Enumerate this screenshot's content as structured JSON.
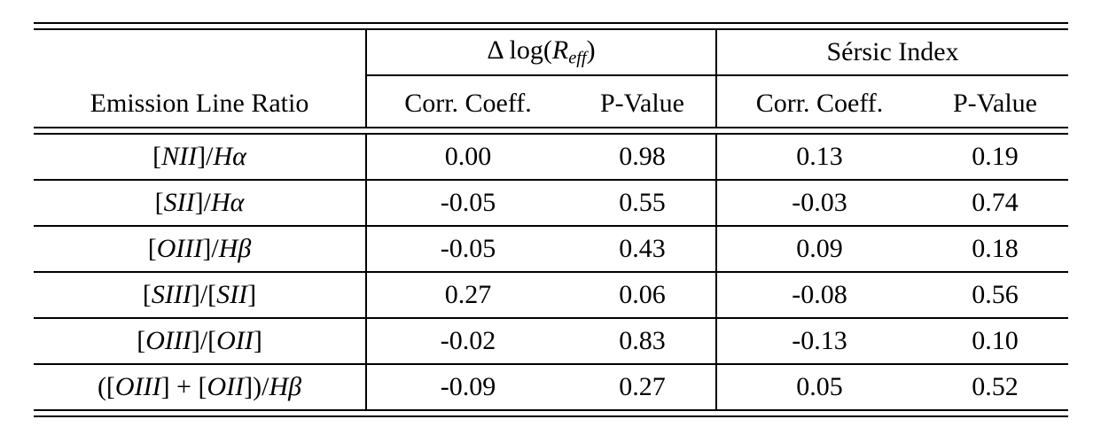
{
  "colors": {
    "background": "#ffffff",
    "text": "#000000",
    "rule": "#000000"
  },
  "table": {
    "row_label_header": "Emission Line Ratio",
    "groups": [
      {
        "title_segments": [
          {
            "t": "Δ log(",
            "it": false
          },
          {
            "t": "R",
            "it": true
          },
          {
            "t": "eff",
            "it": true,
            "sub": true
          },
          {
            "t": ")",
            "it": false
          }
        ],
        "columns": [
          "Corr. Coeff.",
          "P-Value"
        ]
      },
      {
        "title_segments": [
          {
            "t": "Sérsic Index",
            "it": false
          }
        ],
        "columns": [
          "Corr. Coeff.",
          "P-Value"
        ]
      }
    ],
    "rows": [
      {
        "label_segments": [
          {
            "t": "[",
            "it": false
          },
          {
            "t": "NII",
            "it": true
          },
          {
            "t": "]/",
            "it": false
          },
          {
            "t": "Hα",
            "it": true
          }
        ],
        "values": [
          "0.00",
          "0.98",
          "0.13",
          "0.19"
        ]
      },
      {
        "label_segments": [
          {
            "t": "[",
            "it": false
          },
          {
            "t": "SII",
            "it": true
          },
          {
            "t": "]/",
            "it": false
          },
          {
            "t": "Hα",
            "it": true
          }
        ],
        "values": [
          "-0.05",
          "0.55",
          "-0.03",
          "0.74"
        ]
      },
      {
        "label_segments": [
          {
            "t": "[",
            "it": false
          },
          {
            "t": "OIII",
            "it": true
          },
          {
            "t": "]/",
            "it": false
          },
          {
            "t": "Hβ",
            "it": true
          }
        ],
        "values": [
          "-0.05",
          "0.43",
          "0.09",
          "0.18"
        ]
      },
      {
        "label_segments": [
          {
            "t": "[",
            "it": false
          },
          {
            "t": "SIII",
            "it": true
          },
          {
            "t": "]/[",
            "it": false
          },
          {
            "t": "SII",
            "it": true
          },
          {
            "t": "]",
            "it": false
          }
        ],
        "values": [
          "0.27",
          "0.06",
          "-0.08",
          "0.56"
        ]
      },
      {
        "label_segments": [
          {
            "t": "[",
            "it": false
          },
          {
            "t": "OIII",
            "it": true
          },
          {
            "t": "]/[",
            "it": false
          },
          {
            "t": "OII",
            "it": true
          },
          {
            "t": "]",
            "it": false
          }
        ],
        "values": [
          "-0.02",
          "0.83",
          "-0.13",
          "0.10"
        ]
      },
      {
        "label_segments": [
          {
            "t": "([",
            "it": false
          },
          {
            "t": "OIII",
            "it": true
          },
          {
            "t": "] + [",
            "it": false
          },
          {
            "t": "OII",
            "it": true
          },
          {
            "t": "])/",
            "it": false
          },
          {
            "t": "Hβ",
            "it": true
          }
        ],
        "values": [
          "-0.09",
          "0.27",
          "0.05",
          "0.52"
        ]
      }
    ]
  }
}
